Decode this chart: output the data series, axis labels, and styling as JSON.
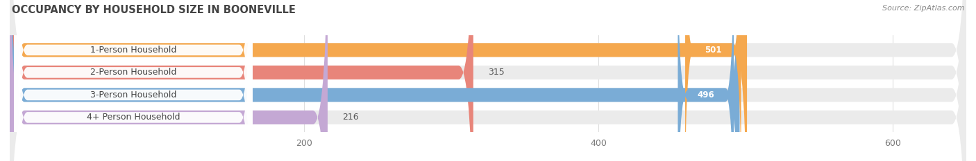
{
  "title": "OCCUPANCY BY HOUSEHOLD SIZE IN BOONEVILLE",
  "source": "Source: ZipAtlas.com",
  "categories": [
    "1-Person Household",
    "2-Person Household",
    "3-Person Household",
    "4+ Person Household"
  ],
  "values": [
    501,
    315,
    496,
    216
  ],
  "bar_colors": [
    "#f5a84e",
    "#e8857a",
    "#7aacd6",
    "#c4a8d4"
  ],
  "bar_bg_color": "#ebebeb",
  "xlim": [
    0,
    650
  ],
  "xticks": [
    200,
    400,
    600
  ],
  "bar_height": 0.62,
  "figsize": [
    14.06,
    2.33
  ],
  "dpi": 100,
  "bg_color": "#ffffff",
  "title_color": "#444444",
  "source_color": "#888888",
  "label_text_color": "#444444",
  "label_pill_bg": "#ffffff",
  "value_threshold": 350
}
